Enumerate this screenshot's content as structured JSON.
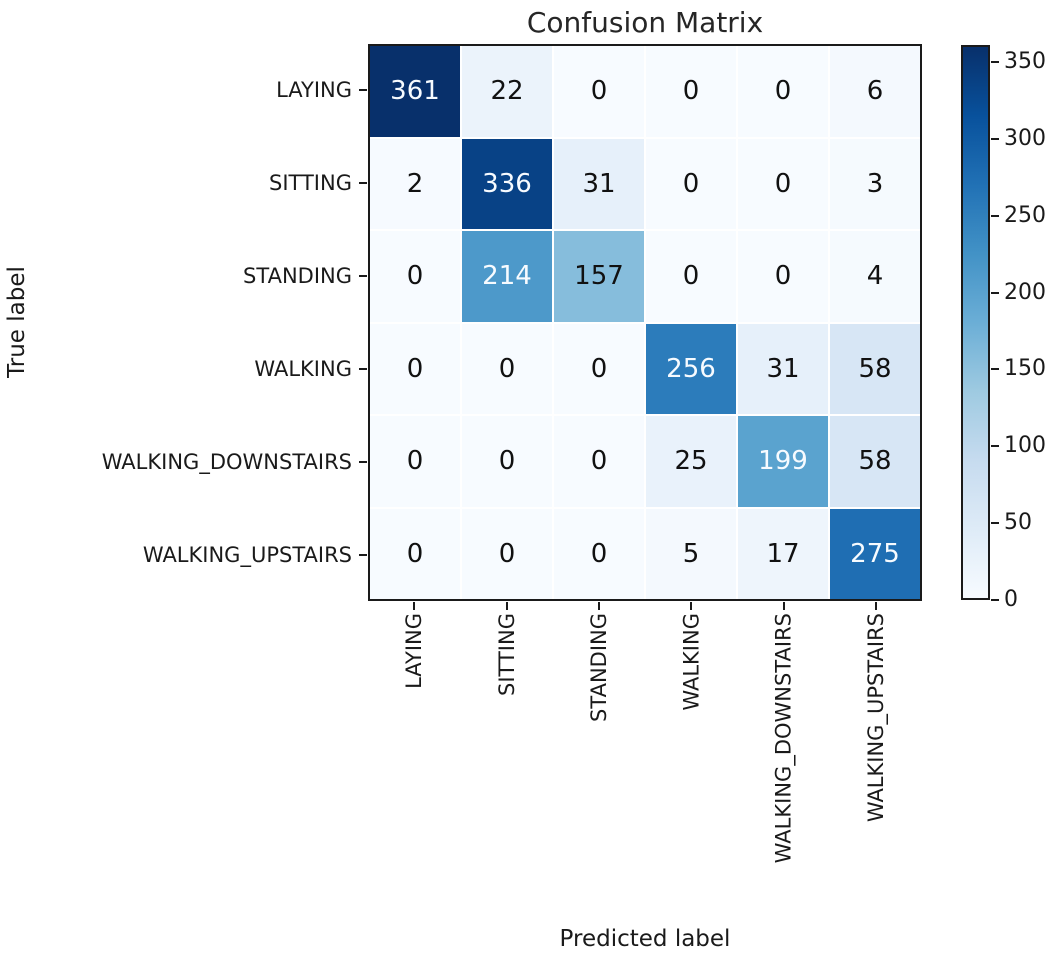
{
  "chart_data": {
    "type": "heatmap",
    "title": "Confusion Matrix",
    "xlabel": "Predicted label",
    "ylabel": "True label",
    "categories": [
      "LAYING",
      "SITTING",
      "STANDING",
      "WALKING",
      "WALKING_DOWNSTAIRS",
      "WALKING_UPSTAIRS"
    ],
    "matrix": [
      [
        361,
        22,
        0,
        0,
        0,
        6
      ],
      [
        2,
        336,
        31,
        0,
        0,
        3
      ],
      [
        0,
        214,
        157,
        0,
        0,
        4
      ],
      [
        0,
        0,
        0,
        256,
        31,
        58
      ],
      [
        0,
        0,
        0,
        25,
        199,
        58
      ],
      [
        0,
        0,
        0,
        5,
        17,
        275
      ]
    ],
    "colormap": "Blues",
    "vmin": 0,
    "vmax": 361,
    "colorbar_ticks": [
      "0",
      "50",
      "100",
      "150",
      "200",
      "250",
      "300",
      "350"
    ],
    "colors": {
      "cmap_low": "#f7fbff",
      "cmap_high": "#08306b",
      "cell_text_light": "#f7fbff",
      "cell_text_dark": "#111111",
      "axis": "#1a1a1a"
    },
    "legend_position": "right-colorbar",
    "grid": false
  }
}
